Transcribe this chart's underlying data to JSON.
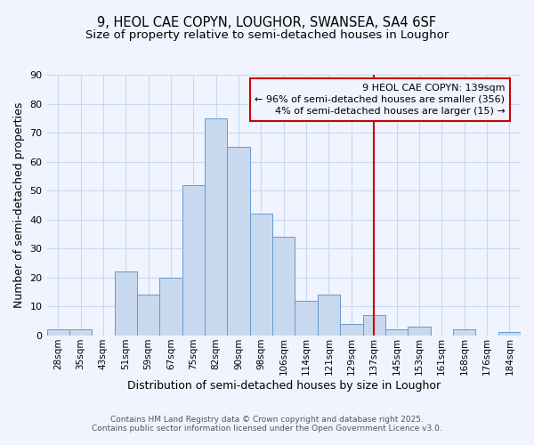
{
  "title": "9, HEOL CAE COPYN, LOUGHOR, SWANSEA, SA4 6SF",
  "subtitle": "Size of property relative to semi-detached houses in Loughor",
  "xlabel": "Distribution of semi-detached houses by size in Loughor",
  "ylabel": "Number of semi-detached properties",
  "bin_labels": [
    "28sqm",
    "35sqm",
    "43sqm",
    "51sqm",
    "59sqm",
    "67sqm",
    "75sqm",
    "82sqm",
    "90sqm",
    "98sqm",
    "106sqm",
    "114sqm",
    "121sqm",
    "129sqm",
    "137sqm",
    "145sqm",
    "153sqm",
    "161sqm",
    "168sqm",
    "176sqm",
    "184sqm"
  ],
  "bar_heights": [
    2,
    2,
    0,
    22,
    14,
    20,
    52,
    75,
    65,
    42,
    34,
    12,
    14,
    4,
    7,
    2,
    3,
    0,
    2,
    0,
    1
  ],
  "bar_color": "#c8d9ef",
  "bar_edge_color": "#6699cc",
  "grid_color": "#c8d9ef",
  "vline_x": 14,
  "vline_color": "#cc0000",
  "annotation_title": "9 HEOL CAE COPYN: 139sqm",
  "annotation_line1": "← 96% of semi-detached houses are smaller (356)",
  "annotation_line2": "4% of semi-detached houses are larger (15) →",
  "annotation_box_color": "#cc0000",
  "ylim": [
    0,
    90
  ],
  "yticks": [
    0,
    10,
    20,
    30,
    40,
    50,
    60,
    70,
    80,
    90
  ],
  "footer1": "Contains HM Land Registry data © Crown copyright and database right 2025.",
  "footer2": "Contains public sector information licensed under the Open Government Licence v3.0.",
  "background_color": "#f0f4ff",
  "title_fontsize": 10.5,
  "subtitle_fontsize": 9.5,
  "annotation_fontsize": 8,
  "axis_label_fontsize": 9,
  "tick_fontsize": 8,
  "footer_fontsize": 6.5
}
